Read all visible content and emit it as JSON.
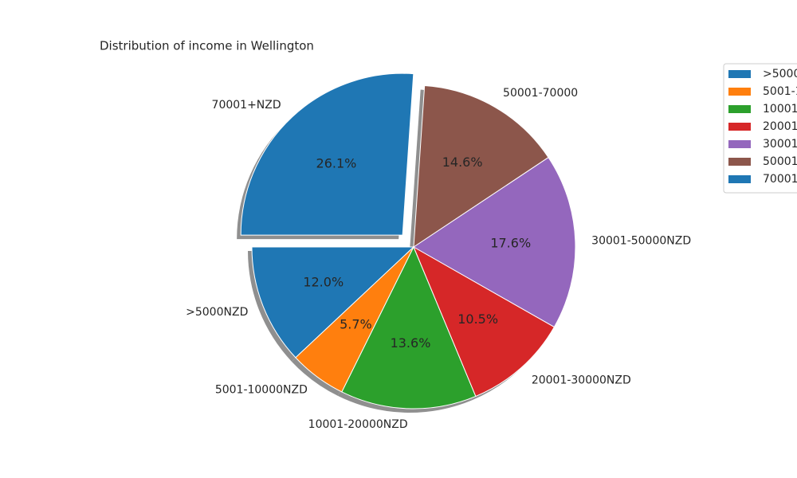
{
  "chart_data": {
    "type": "pie",
    "title": "Distribution of income in Wellington",
    "categories": [
      ">5000NZD",
      "5001-10000NZD",
      "10001-20000NZD",
      "20001-30000NZD",
      "30001-50000NZD",
      "50001-70000",
      "70001+NZD"
    ],
    "values": [
      12.0,
      5.7,
      13.6,
      10.5,
      17.6,
      14.6,
      26.1
    ],
    "value_labels": [
      "12.0%",
      "5.7%",
      "13.6%",
      "10.5%",
      "17.6%",
      "14.6%",
      "26.1%"
    ],
    "colors": [
      "#1f77b4",
      "#ff7f0e",
      "#2ca02c",
      "#d62728",
      "#9467bd",
      "#8c564b",
      "#1f77b4"
    ],
    "explode": [
      0,
      0,
      0,
      0,
      0,
      0,
      0.1
    ],
    "shadow": true,
    "legend": "upper right"
  }
}
